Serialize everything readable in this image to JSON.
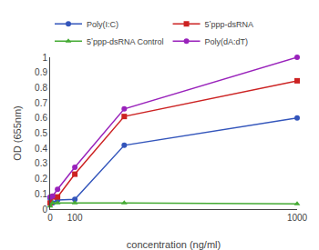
{
  "chart_data": {
    "type": "line",
    "xlabel": "concentration (ng/ml)",
    "ylabel": "OD (655nm)",
    "x": [
      0,
      10,
      30,
      100,
      300,
      1000
    ],
    "series": [
      {
        "name": "Poly(I:C)",
        "color": "#3355bb",
        "marker": "circle",
        "line_style": "solid",
        "values": [
          0.07,
          0.04,
          0.06,
          0.065,
          0.42,
          0.6
        ]
      },
      {
        "name": "5ʼppp-dsRNA",
        "color": "#cc2222",
        "marker": "square",
        "line_style": "solid",
        "values": [
          0.04,
          0.08,
          0.08,
          0.23,
          0.61,
          0.845
        ]
      },
      {
        "name": "5ʼppp-dsRNA Control",
        "color": "#44aa33",
        "marker": "triangle-up",
        "line_style": "solid",
        "values": [
          0.02,
          0.04,
          0.04,
          0.04,
          0.04,
          0.035
        ]
      },
      {
        "name": "Poly(dA:dT)",
        "color": "#9922bb",
        "marker": "circle",
        "line_style": "solid",
        "values": [
          0.08,
          0.085,
          0.13,
          0.275,
          0.66,
          1.0
        ]
      }
    ],
    "xlim": [
      0,
      1000
    ],
    "ylim": [
      0,
      1.0
    ],
    "xticks": [
      0,
      100,
      1000
    ],
    "yticks": [
      0,
      0.1,
      0.2,
      0.3,
      0.4,
      0.5,
      0.6,
      0.7,
      0.8,
      0.9,
      1
    ],
    "grid": false,
    "legend": "upper left"
  }
}
